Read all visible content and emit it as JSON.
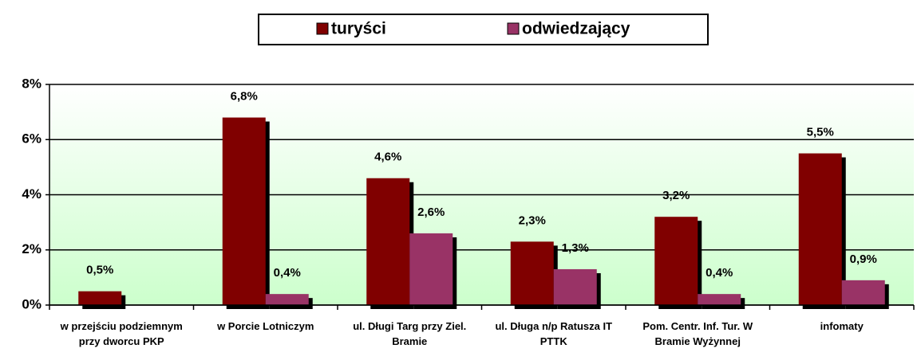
{
  "chart_data": {
    "type": "bar",
    "categories": [
      "w przejściu podziemnym przy dworcu PKP",
      "w Porcie Lotniczym",
      "ul. Długi Targ przy Ziel. Bramie",
      "ul. Długa n/p Ratusza IT PTTK",
      "Pom. Centr. Inf. Tur. W Bramie Wyżynnej",
      "infomaty"
    ],
    "series": [
      {
        "name": "turyści",
        "color": "#800000",
        "values": [
          0.5,
          6.8,
          4.6,
          2.3,
          3.2,
          5.5
        ],
        "value_labels": [
          "0,5%",
          "6,8%",
          "4,6%",
          "2,3%",
          "3,2%",
          "5,5%"
        ]
      },
      {
        "name": "odwiedzający",
        "color": "#993366",
        "values": [
          null,
          0.4,
          2.6,
          1.3,
          0.4,
          0.9
        ],
        "value_labels": [
          null,
          "0,4%",
          "2,6%",
          "1,3%",
          "0,4%",
          "0,9%"
        ]
      }
    ],
    "ylim": [
      0,
      8
    ],
    "yticks": [
      {
        "value": 0,
        "label": "0%"
      },
      {
        "value": 2,
        "label": "2%"
      },
      {
        "value": 4,
        "label": "4%"
      },
      {
        "value": 6,
        "label": "6%"
      },
      {
        "value": 8,
        "label": "8%"
      }
    ],
    "grid": true,
    "legend": "top"
  }
}
